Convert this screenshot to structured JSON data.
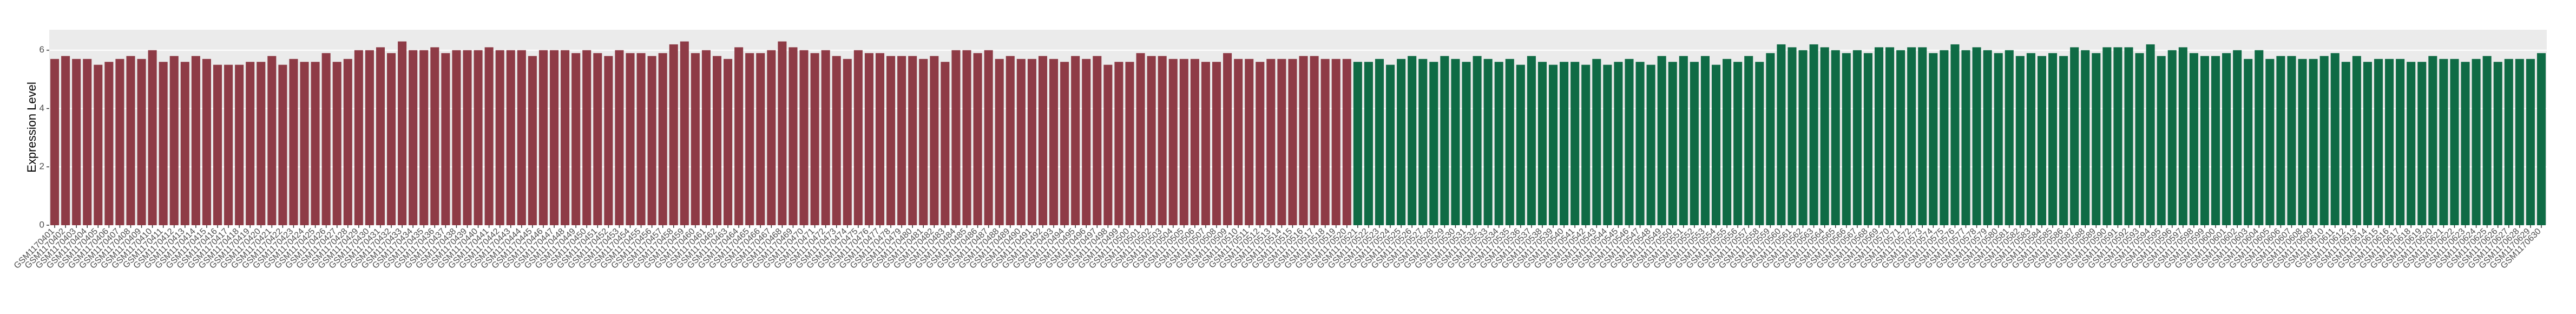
{
  "chart_data": {
    "type": "bar",
    "y_label": "Expression Level",
    "ylim": [
      0,
      6.7
    ],
    "yticks": [
      0,
      2,
      4,
      6
    ],
    "grid": true,
    "background": "#ebebeb",
    "grid_color": "#ffffff",
    "categories": [
      "GSM1170401",
      "GSM1170402",
      "GSM1170403",
      "GSM1170404",
      "GSM1170405",
      "GSM1170406",
      "GSM1170407",
      "GSM1170408",
      "GSM1170409",
      "GSM1170410",
      "GSM1170411",
      "GSM1170412",
      "GSM1170413",
      "GSM1170414",
      "GSM1170415",
      "GSM1170416",
      "GSM1170417",
      "GSM1170418",
      "GSM1170419",
      "GSM1170420",
      "GSM1170421",
      "GSM1170422",
      "GSM1170423",
      "GSM1170424",
      "GSM1170425",
      "GSM1170426",
      "GSM1170427",
      "GSM1170428",
      "GSM1170429",
      "GSM1170430",
      "GSM1170431",
      "GSM1170432",
      "GSM1170433",
      "GSM1170434",
      "GSM1170435",
      "GSM1170436",
      "GSM1170437",
      "GSM1170438",
      "GSM1170439",
      "GSM1170440",
      "GSM1170441",
      "GSM1170442",
      "GSM1170443",
      "GSM1170444",
      "GSM1170445",
      "GSM1170446",
      "GSM1170447",
      "GSM1170448",
      "GSM1170449",
      "GSM1170450",
      "GSM1170451",
      "GSM1170452",
      "GSM1170453",
      "GSM1170454",
      "GSM1170455",
      "GSM1170456",
      "GSM1170457",
      "GSM1170458",
      "GSM1170459",
      "GSM1170460",
      "GSM1170461",
      "GSM1170462",
      "GSM1170463",
      "GSM1170464",
      "GSM1170465",
      "GSM1170466",
      "GSM1170467",
      "GSM1170468",
      "GSM1170469",
      "GSM1170470",
      "GSM1170471",
      "GSM1170472",
      "GSM1170473",
      "GSM1170474",
      "GSM1170475",
      "GSM1170476",
      "GSM1170477",
      "GSM1170478",
      "GSM1170479",
      "GSM1170480",
      "GSM1170481",
      "GSM1170482",
      "GSM1170483",
      "GSM1170484",
      "GSM1170485",
      "GSM1170486",
      "GSM1170487",
      "GSM1170488",
      "GSM1170489",
      "GSM1170490",
      "GSM1170491",
      "GSM1170492",
      "GSM1170493",
      "GSM1170494",
      "GSM1170495",
      "GSM1170496",
      "GSM1170497",
      "GSM1170498",
      "GSM1170499",
      "GSM1170500",
      "GSM1170501",
      "GSM1170502",
      "GSM1170503",
      "GSM1170504",
      "GSM1170505",
      "GSM1170506",
      "GSM1170507",
      "GSM1170508",
      "GSM1170509",
      "GSM1170510",
      "GSM1170511",
      "GSM1170512",
      "GSM1170513",
      "GSM1170514",
      "GSM1170515",
      "GSM1170516",
      "GSM1170517",
      "GSM1170518",
      "GSM1170519",
      "GSM1170520",
      "GSM1170521",
      "GSM1170522",
      "GSM1170523",
      "GSM1170524",
      "GSM1170525",
      "GSM1170526",
      "GSM1170527",
      "GSM1170528",
      "GSM1170529",
      "GSM1170530",
      "GSM1170531",
      "GSM1170532",
      "GSM1170533",
      "GSM1170534",
      "GSM1170535",
      "GSM1170536",
      "GSM1170537",
      "GSM1170538",
      "GSM1170539",
      "GSM1170540",
      "GSM1170541",
      "GSM1170542",
      "GSM1170543",
      "GSM1170544",
      "GSM1170545",
      "GSM1170546",
      "GSM1170547",
      "GSM1170548",
      "GSM1170549",
      "GSM1170550",
      "GSM1170551",
      "GSM1170552",
      "GSM1170553",
      "GSM1170554",
      "GSM1170555",
      "GSM1170556",
      "GSM1170557",
      "GSM1170558",
      "GSM1170559",
      "GSM1170560",
      "GSM1170561",
      "GSM1170562",
      "GSM1170563",
      "GSM1170564",
      "GSM1170565",
      "GSM1170566",
      "GSM1170567",
      "GSM1170568",
      "GSM1170569",
      "GSM1170570",
      "GSM1170571",
      "GSM1170572",
      "GSM1170573",
      "GSM1170574",
      "GSM1170575",
      "GSM1170576",
      "GSM1170577",
      "GSM1170578",
      "GSM1170579",
      "GSM1170580",
      "GSM1170581",
      "GSM1170582",
      "GSM1170583",
      "GSM1170584",
      "GSM1170585",
      "GSM1170586",
      "GSM1170587",
      "GSM1170588",
      "GSM1170589",
      "GSM1170590",
      "GSM1170591",
      "GSM1170592",
      "GSM1170593",
      "GSM1170594",
      "GSM1170595",
      "GSM1170596",
      "GSM1170597",
      "GSM1170598",
      "GSM1170599",
      "GSM1170600",
      "GSM1170601",
      "GSM1170602",
      "GSM1170603",
      "GSM1170604",
      "GSM1170605",
      "GSM1170606",
      "GSM1170607",
      "GSM1170608",
      "GSM1170609",
      "GSM1170610",
      "GSM1170611",
      "GSM1170612",
      "GSM1170613",
      "GSM1170614",
      "GSM1170615",
      "GSM1170616",
      "GSM1170617",
      "GSM1170618",
      "GSM1170619",
      "GSM1170620",
      "GSM1170621",
      "GSM1170622",
      "GSM1170623",
      "GSM1170624",
      "GSM1170625",
      "GSM1170626",
      "GSM1170627",
      "GSM1170628",
      "GSM1170629",
      "GSM1170630"
    ],
    "series": [
      {
        "color": "#8e3b46",
        "values": [
          5.7,
          5.8,
          5.7,
          5.7,
          5.5,
          5.6,
          5.7,
          5.8,
          5.7,
          6.0,
          5.6,
          5.8,
          5.6,
          5.8,
          5.7,
          5.5,
          5.5,
          5.5,
          5.6,
          5.6,
          5.8,
          5.5,
          5.7,
          5.6,
          5.6,
          5.9,
          5.6,
          5.7,
          6.0,
          6.0,
          6.1,
          5.9,
          6.3,
          6.0,
          6.0,
          6.1,
          5.9,
          6.0,
          6.0,
          6.0,
          6.1,
          6.0,
          6.0,
          6.0,
          5.8,
          6.0,
          6.0,
          6.0,
          5.9,
          6.0,
          5.9,
          5.8,
          6.0,
          5.9,
          5.9,
          5.8,
          5.9,
          6.2,
          6.3,
          5.9,
          6.0,
          5.8,
          5.7,
          6.1,
          5.9,
          5.9,
          6.0,
          6.3,
          6.1,
          6.0,
          5.9,
          6.0,
          5.8,
          5.7,
          6.0,
          5.9,
          5.9,
          5.8,
          5.8,
          5.8,
          5.7,
          5.8,
          5.6,
          6.0,
          6.0,
          5.9,
          6.0,
          5.7,
          5.8,
          5.7,
          5.7,
          5.8,
          5.7,
          5.6,
          5.8,
          5.7,
          5.8,
          5.5,
          5.6,
          5.6,
          5.9,
          5.8,
          5.8,
          5.7,
          5.7,
          5.7,
          5.6,
          5.6,
          5.9,
          5.7,
          5.7,
          5.6,
          5.7,
          5.7,
          5.7,
          5.8,
          5.8,
          5.7,
          5.7,
          5.7,
          null,
          null,
          null,
          null,
          null,
          null,
          null,
          null,
          null,
          null,
          null,
          null,
          null,
          null,
          null,
          null,
          null,
          null,
          null,
          null,
          null,
          null,
          null,
          null,
          null,
          null,
          null,
          null,
          null,
          null,
          null,
          null,
          null,
          null,
          null,
          null,
          null,
          null,
          null,
          null,
          null,
          null,
          null,
          null,
          null,
          null,
          null,
          null,
          null,
          null,
          null,
          null,
          null,
          null,
          null,
          null,
          null,
          null,
          null,
          null,
          null,
          null,
          null,
          null,
          null,
          null,
          null,
          null,
          null,
          null,
          null,
          null,
          null,
          null,
          null,
          null,
          null,
          null,
          null,
          null,
          null,
          null,
          null,
          null,
          null,
          null,
          null,
          null,
          null,
          null,
          null,
          null,
          null,
          null,
          null,
          null,
          null,
          null,
          null,
          null,
          null,
          null,
          null,
          null,
          null,
          null,
          null,
          null,
          null,
          null
        ]
      },
      {
        "color": "#0f6b45",
        "values": [
          null,
          null,
          null,
          null,
          null,
          null,
          null,
          null,
          null,
          null,
          null,
          null,
          null,
          null,
          null,
          null,
          null,
          null,
          null,
          null,
          null,
          null,
          null,
          null,
          null,
          null,
          null,
          null,
          null,
          null,
          null,
          null,
          null,
          null,
          null,
          null,
          null,
          null,
          null,
          null,
          null,
          null,
          null,
          null,
          null,
          null,
          null,
          null,
          null,
          null,
          null,
          null,
          null,
          null,
          null,
          null,
          null,
          null,
          null,
          null,
          null,
          null,
          null,
          null,
          null,
          null,
          null,
          null,
          null,
          null,
          null,
          null,
          null,
          null,
          null,
          null,
          null,
          null,
          null,
          null,
          null,
          null,
          null,
          null,
          null,
          null,
          null,
          null,
          null,
          null,
          null,
          null,
          null,
          null,
          null,
          null,
          null,
          null,
          null,
          null,
          null,
          null,
          null,
          null,
          null,
          null,
          null,
          null,
          null,
          null,
          null,
          null,
          null,
          null,
          null,
          null,
          null,
          null,
          null,
          null,
          5.6,
          5.6,
          5.7,
          5.5,
          5.7,
          5.8,
          5.7,
          5.6,
          5.8,
          5.7,
          5.6,
          5.8,
          5.7,
          5.6,
          5.7,
          5.5,
          5.8,
          5.6,
          5.5,
          5.6,
          5.6,
          5.5,
          5.7,
          5.5,
          5.6,
          5.7,
          5.6,
          5.5,
          5.8,
          5.6,
          5.8,
          5.6,
          5.8,
          5.5,
          5.7,
          5.6,
          5.8,
          5.6,
          5.9,
          6.2,
          6.1,
          6.0,
          6.2,
          6.1,
          6.0,
          5.9,
          6.0,
          5.9,
          6.1,
          6.1,
          6.0,
          6.1,
          6.1,
          5.9,
          6.0,
          6.2,
          6.0,
          6.1,
          6.0,
          5.9,
          6.0,
          5.8,
          5.9,
          5.8,
          5.9,
          5.8,
          6.1,
          6.0,
          5.9,
          6.1,
          6.1,
          6.1,
          5.9,
          6.2,
          5.8,
          6.0,
          6.1,
          5.9,
          5.8,
          5.8,
          5.9,
          6.0,
          5.7,
          6.0,
          5.7,
          5.8,
          5.8,
          5.7,
          5.7,
          5.8,
          5.9,
          5.6,
          5.8,
          5.6,
          5.7,
          5.7,
          5.7,
          5.6,
          5.6,
          5.8,
          5.7,
          5.7,
          5.6,
          5.7,
          5.8,
          5.6,
          5.7,
          5.7,
          5.7,
          5.9
        ]
      }
    ]
  }
}
